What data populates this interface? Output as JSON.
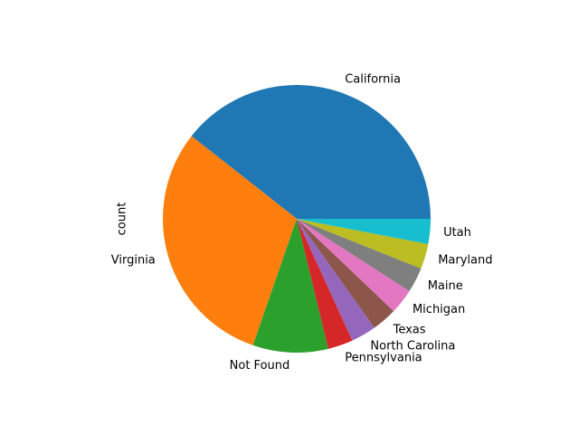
{
  "chart_data": {
    "type": "pie",
    "ylabel": "count",
    "start_angle_deg": 0,
    "direction": "counterclockwise",
    "slices": [
      {
        "label": "California",
        "value": 13,
        "color": "#1f77b4"
      },
      {
        "label": "Virginia",
        "value": 10,
        "color": "#ff7f0e"
      },
      {
        "label": "Not Found",
        "value": 3,
        "color": "#2ca02c"
      },
      {
        "label": "Pennsylvania",
        "value": 1,
        "color": "#d62728"
      },
      {
        "label": "North Carolina",
        "value": 1,
        "color": "#9467bd"
      },
      {
        "label": "Texas",
        "value": 1,
        "color": "#8c564b"
      },
      {
        "label": "Michigan",
        "value": 1,
        "color": "#e377c2"
      },
      {
        "label": "Maine",
        "value": 1,
        "color": "#7f7f7f"
      },
      {
        "label": "Maryland",
        "value": 1,
        "color": "#bcbd22"
      },
      {
        "label": "Utah",
        "value": 1,
        "color": "#17becf"
      }
    ]
  }
}
